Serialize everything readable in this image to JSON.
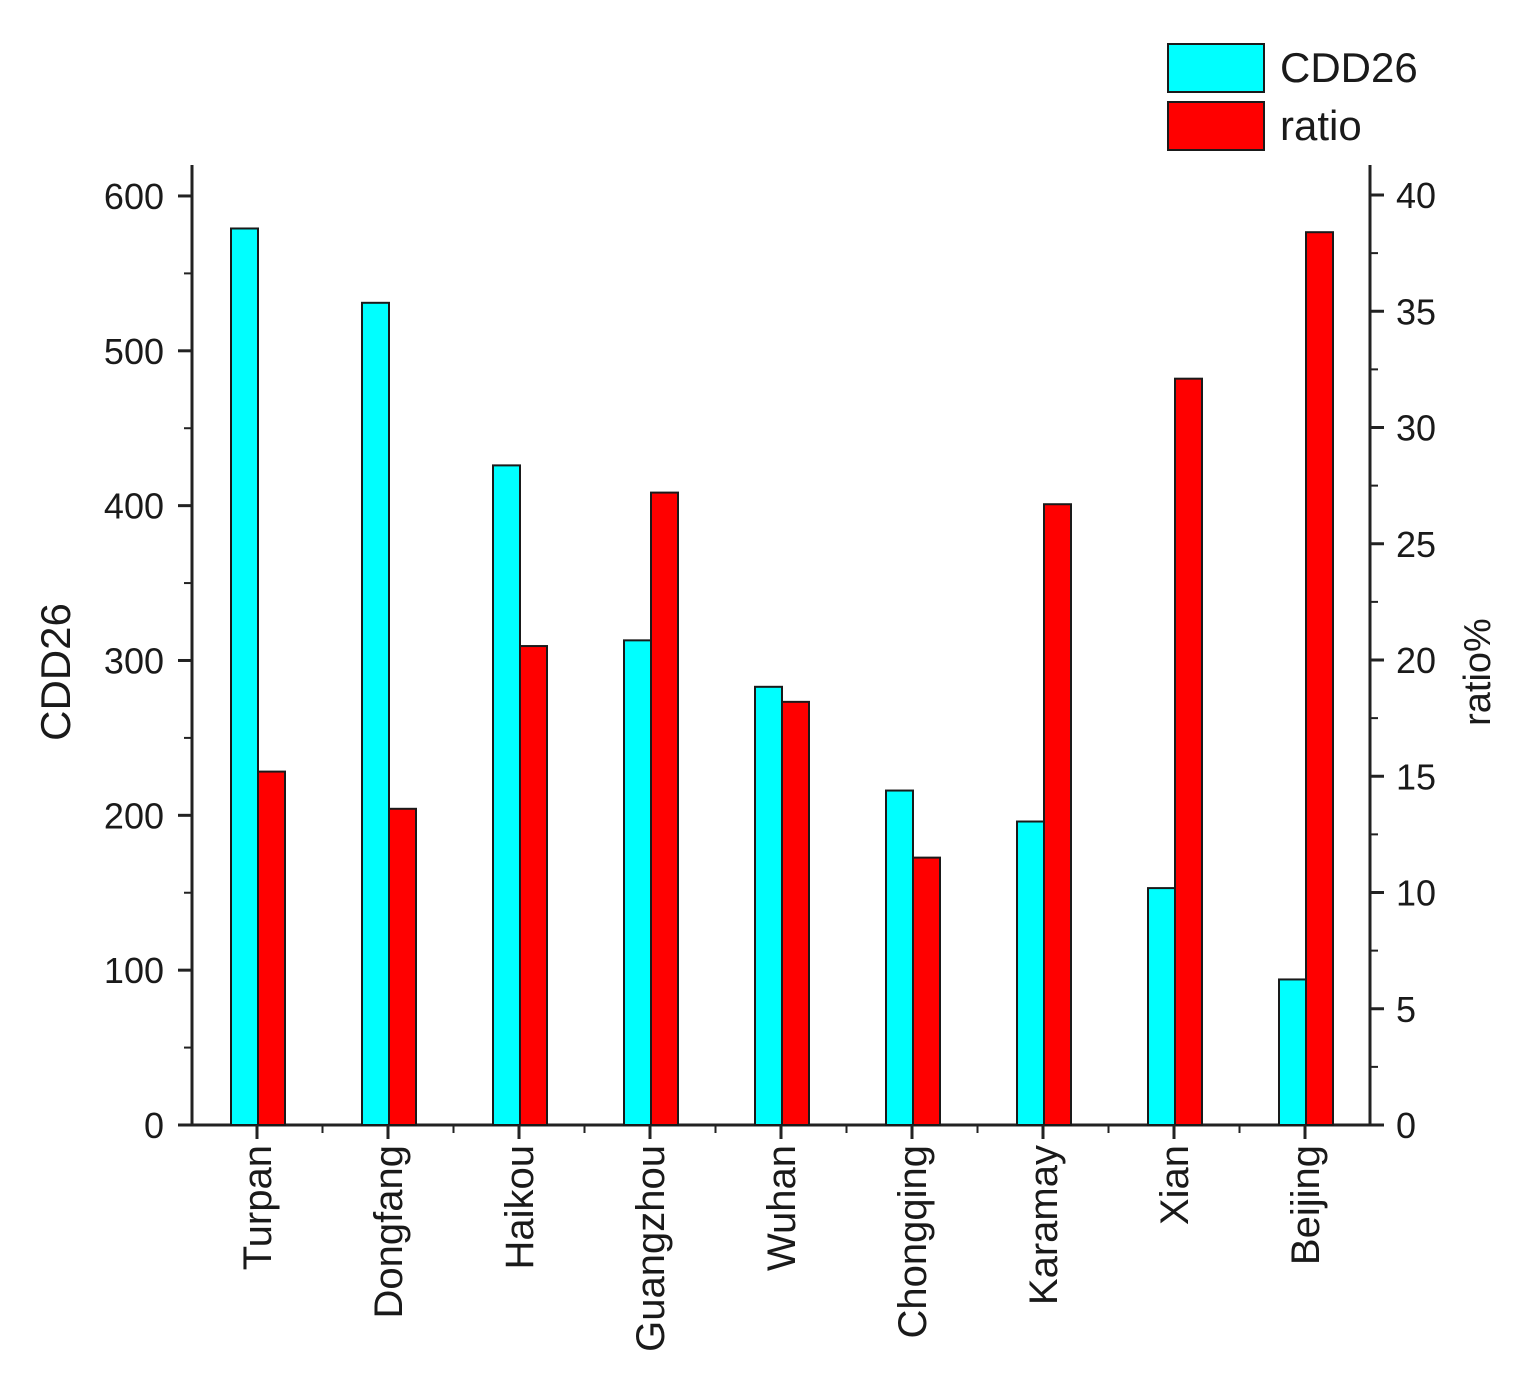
{
  "chart_data": {
    "type": "bar",
    "categories": [
      "Turpan",
      "Dongfang",
      "Haikou",
      "Guangzhou",
      "Wuhan",
      "Chongqing",
      "Karamay",
      "Xian",
      "Beijing"
    ],
    "series": [
      {
        "name": "CDD26",
        "axis": "left",
        "color": "#00ffff",
        "values": [
          579,
          531,
          426,
          313,
          283,
          216,
          196,
          153,
          94
        ]
      },
      {
        "name": "ratio",
        "axis": "right",
        "color": "#ff0000",
        "values": [
          15.2,
          13.6,
          20.6,
          27.2,
          18.2,
          11.5,
          26.7,
          32.1,
          38.4
        ]
      }
    ],
    "ylabel_left": "CDD26",
    "ylabel_right": "ratio%",
    "ylim_left": [
      0,
      600
    ],
    "ylim_right": [
      0,
      40
    ],
    "yticks_left": [
      "0",
      "100",
      "200",
      "300",
      "400",
      "500",
      "600"
    ],
    "yticks_right": [
      "0",
      "5",
      "10",
      "15",
      "20",
      "25",
      "30",
      "35",
      "40"
    ],
    "grid": false,
    "legend_position": "top-right"
  }
}
